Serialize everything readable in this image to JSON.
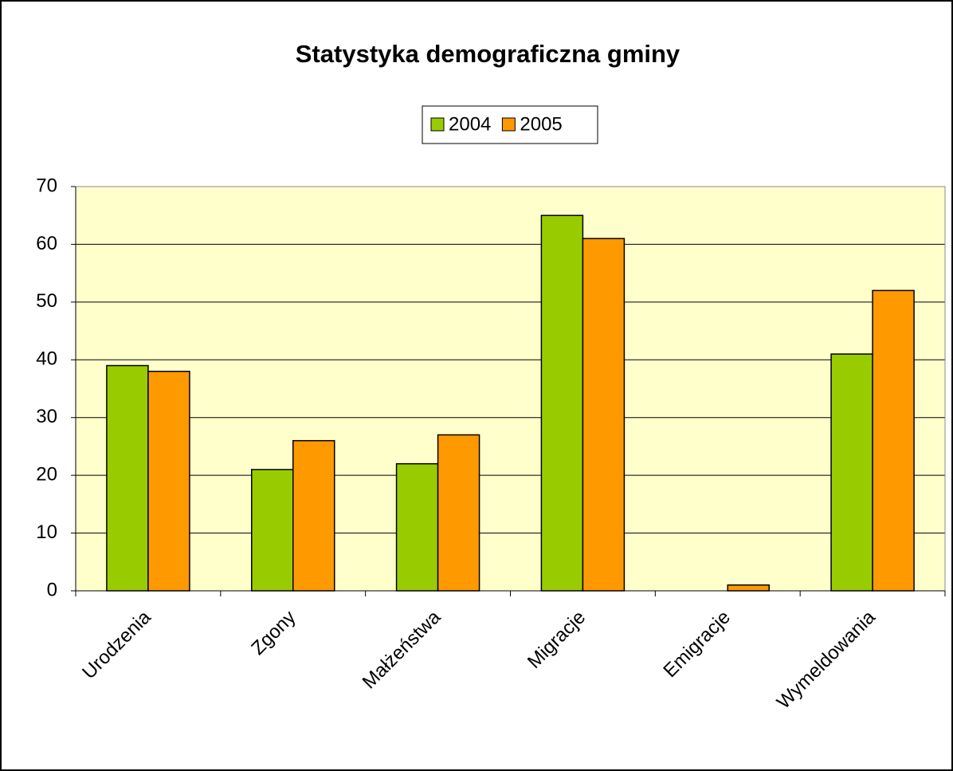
{
  "chart_data": {
    "type": "bar",
    "title": "Statystyka demograficzna gminy",
    "categories": [
      "Urodzenia",
      "Zgony",
      "Małżeństwa",
      "Migracje",
      "Emigracje",
      "Wymeldowania"
    ],
    "series": [
      {
        "name": "2004",
        "color": "#99cc00",
        "values": [
          39,
          21,
          22,
          65,
          0,
          41
        ]
      },
      {
        "name": "2005",
        "color": "#ff9900",
        "values": [
          38,
          26,
          27,
          61,
          1,
          52
        ]
      }
    ],
    "ylim": [
      0,
      70
    ],
    "yticks": [
      0,
      10,
      20,
      30,
      40,
      50,
      60,
      70
    ],
    "grid": true,
    "legend": "top"
  }
}
